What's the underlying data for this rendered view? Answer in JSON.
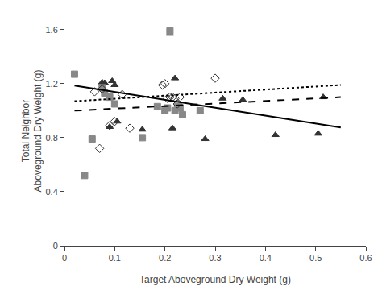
{
  "chart_data": {
    "type": "scatter",
    "xlabel": "Target Aboveground Dry Weight (g)",
    "ylabel": "Total Neighbor\nAboveground Dry Weight (g)",
    "xlim": [
      0,
      0.6
    ],
    "ylim": [
      0,
      1.7
    ],
    "xticks": [
      0,
      0.1,
      0.2,
      0.3,
      0.4,
      0.5,
      0.6
    ],
    "yticks": [
      0,
      0.4,
      0.8,
      1.2,
      1.6
    ],
    "grid": false,
    "series": [
      {
        "type": "scatter",
        "marker": "triangle-up",
        "color": "#333333",
        "x": [
          0.075,
          0.08,
          0.09,
          0.095,
          0.1,
          0.105,
          0.155,
          0.21,
          0.215,
          0.22,
          0.28,
          0.315,
          0.355,
          0.42,
          0.505,
          0.515
        ],
        "values": [
          1.21,
          1.205,
          0.88,
          1.22,
          1.19,
          0.92,
          0.86,
          1.57,
          0.87,
          1.24,
          0.79,
          1.09,
          1.08,
          0.82,
          0.83,
          1.1
        ]
      },
      {
        "type": "scatter",
        "marker": "square",
        "color": "#888888",
        "x": [
          0.02,
          0.04,
          0.055,
          0.075,
          0.08,
          0.09,
          0.1,
          0.155,
          0.185,
          0.2,
          0.205,
          0.21,
          0.22,
          0.225,
          0.23,
          0.235,
          0.27
        ],
        "values": [
          1.27,
          0.52,
          0.79,
          1.17,
          1.13,
          1.1,
          1.05,
          0.8,
          1.03,
          1.0,
          1.02,
          1.59,
          1.0,
          1.03,
          1.02,
          0.97,
          1.0
        ]
      },
      {
        "type": "scatter",
        "marker": "diamond-open",
        "color": "#333333",
        "x": [
          0.06,
          0.07,
          0.075,
          0.09,
          0.1,
          0.115,
          0.13,
          0.195,
          0.2,
          0.205,
          0.21,
          0.215,
          0.22,
          0.225,
          0.23,
          0.3
        ],
        "values": [
          1.14,
          0.72,
          1.16,
          0.89,
          0.92,
          1.12,
          0.87,
          1.19,
          1.2,
          1.09,
          1.1,
          1.1,
          1.09,
          1.05,
          1.1,
          1.24
        ]
      },
      {
        "type": "line",
        "line_style": "solid",
        "color": "#000000",
        "x": [
          0.02,
          0.55
        ],
        "values": [
          1.185,
          0.875
        ]
      },
      {
        "type": "line",
        "line_style": "dot",
        "color": "#000000",
        "x": [
          0.02,
          0.55
        ],
        "values": [
          1.07,
          1.19
        ]
      },
      {
        "type": "line",
        "line_style": "dash",
        "color": "#000000",
        "x": [
          0.02,
          0.55
        ],
        "values": [
          1.0,
          1.1
        ]
      }
    ]
  }
}
